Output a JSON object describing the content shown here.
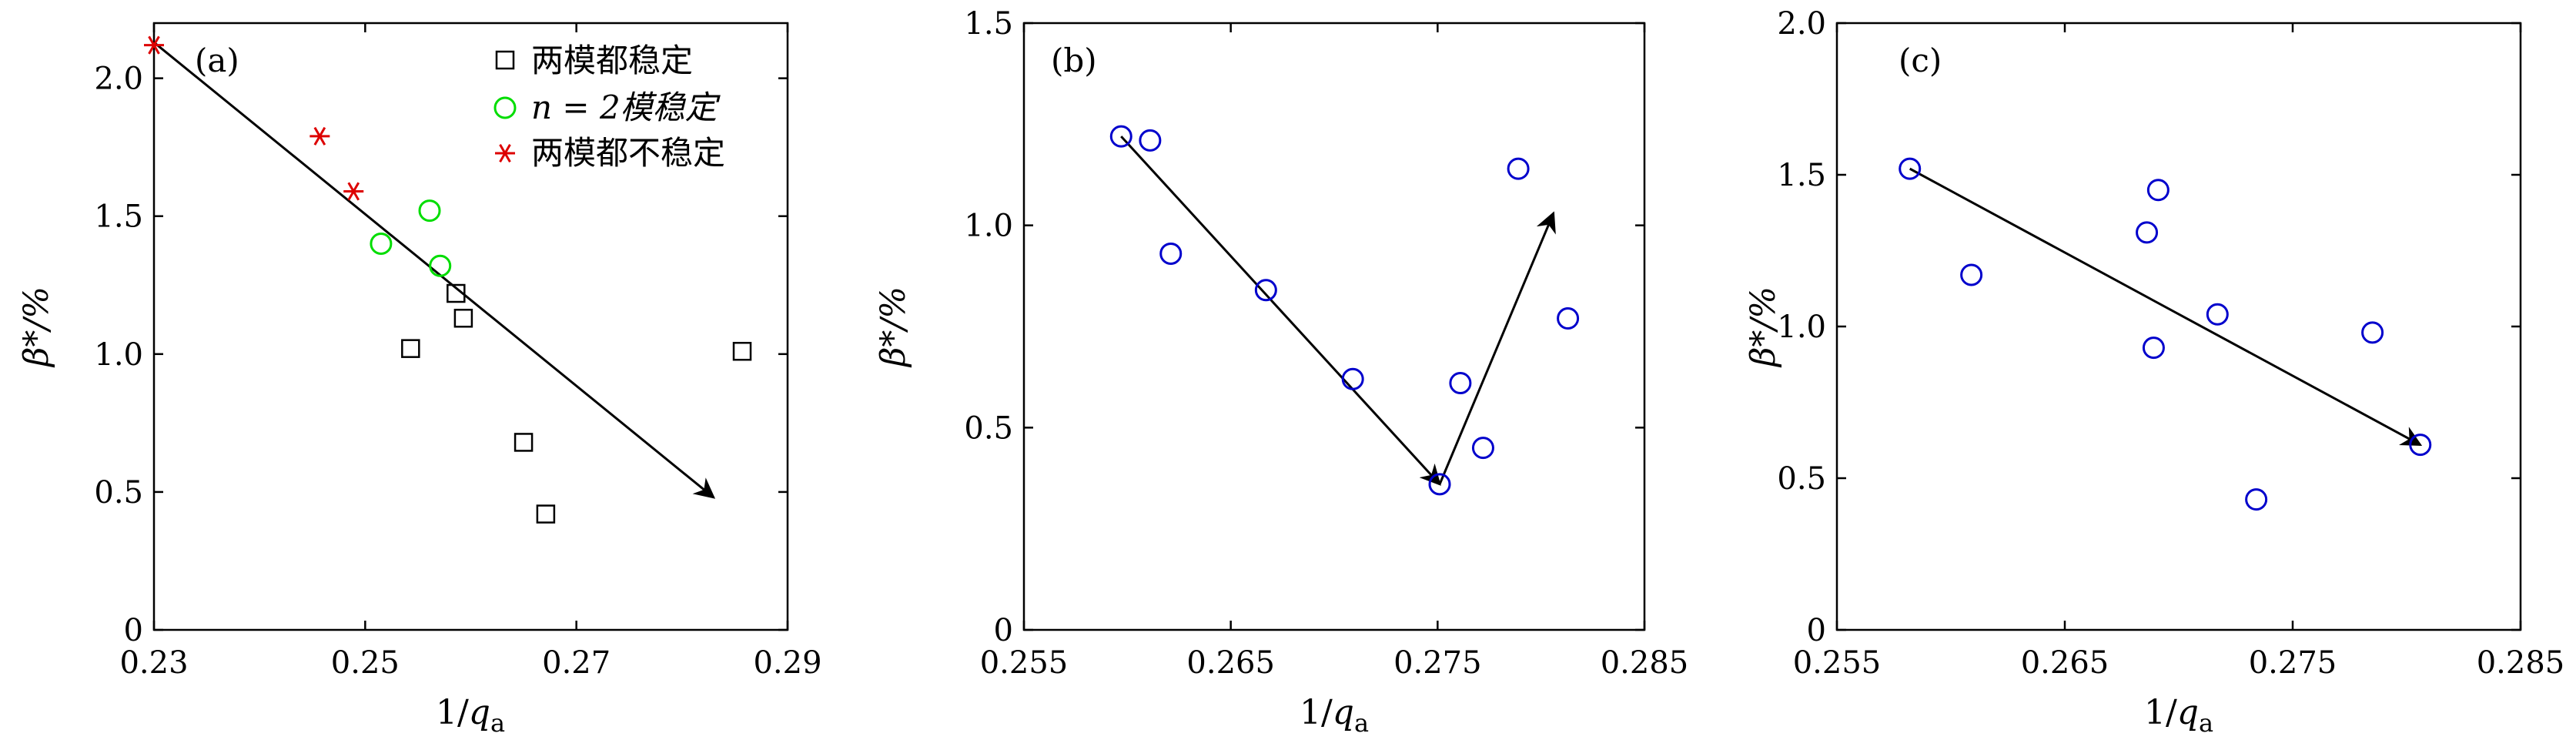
{
  "chart_data": [
    {
      "type": "scatter",
      "panel_label": "(a)",
      "xlabel": "1/q_a",
      "xlabel_main": "1/",
      "xlabel_var": "q",
      "xlabel_sub": "a",
      "ylabel": "β*/%",
      "xlim": [
        0.23,
        0.29
      ],
      "ylim": [
        0,
        2.2
      ],
      "xticks": [
        "0.23",
        "0.25",
        "0.27",
        "0.29"
      ],
      "yticks": [
        "0",
        "0.5",
        "1.0",
        "1.5",
        "2.0"
      ],
      "legend_position": "top-right",
      "series": [
        {
          "name": "两模都稳定",
          "marker": "square",
          "color": "#000000",
          "x": [
            0.2543,
            0.2586,
            0.2593,
            0.265,
            0.2671,
            0.2857
          ],
          "y": [
            1.02,
            1.22,
            1.13,
            0.68,
            0.42,
            1.01
          ]
        },
        {
          "name": "n = 2模稳定",
          "marker": "circle",
          "color": "#00dd00",
          "x": [
            0.2515,
            0.2561,
            0.2571
          ],
          "y": [
            1.4,
            1.52,
            1.32
          ]
        },
        {
          "name": "两模都不稳定",
          "marker": "asterisk",
          "color": "#dd0000",
          "x": [
            0.23,
            0.2457,
            0.2489
          ],
          "y": [
            2.12,
            1.79,
            1.59
          ]
        }
      ],
      "arrows": [
        {
          "from": [
            0.23,
            2.13
          ],
          "to": [
            0.283,
            0.48
          ]
        }
      ]
    },
    {
      "type": "scatter",
      "panel_label": "(b)",
      "xlabel": "1/q_a",
      "xlabel_main": "1/",
      "xlabel_var": "q",
      "xlabel_sub": "a",
      "ylabel": "β*/%",
      "xlim": [
        0.255,
        0.285
      ],
      "ylim": [
        0,
        1.5
      ],
      "xticks": [
        "0.255",
        "0.265",
        "0.275",
        "0.285"
      ],
      "yticks": [
        "0",
        "0.5",
        "1.0",
        "1.5"
      ],
      "series": [
        {
          "marker": "circle",
          "color": "#0000cc",
          "x": [
            0.2597,
            0.2611,
            0.2621,
            0.2667,
            0.2709,
            0.2751,
            0.2761,
            0.2772,
            0.2789,
            0.2813
          ],
          "y": [
            1.22,
            1.21,
            0.93,
            0.84,
            0.62,
            0.36,
            0.61,
            0.45,
            1.14,
            0.77
          ]
        }
      ],
      "arrows": [
        {
          "from": [
            0.2597,
            1.22
          ],
          "to": [
            0.2751,
            0.36
          ]
        },
        {
          "from": [
            0.2751,
            0.36
          ],
          "to": [
            0.2806,
            1.03
          ]
        }
      ]
    },
    {
      "type": "scatter",
      "panel_label": "(c)",
      "xlabel": "1/q_a",
      "xlabel_main": "1/",
      "xlabel_var": "q",
      "xlabel_sub": "a",
      "ylabel": "β*/%",
      "xlim": [
        0.255,
        0.285
      ],
      "ylim": [
        0,
        2.0
      ],
      "xticks": [
        "0.255",
        "0.265",
        "0.275",
        "0.285"
      ],
      "yticks": [
        "0",
        "0.5",
        "1.0",
        "1.5",
        "2.0"
      ],
      "series": [
        {
          "marker": "circle",
          "color": "#0000cc",
          "x": [
            0.2582,
            0.2609,
            0.2686,
            0.2689,
            0.2691,
            0.2717,
            0.2734,
            0.2785,
            0.2806
          ],
          "y": [
            1.52,
            1.17,
            1.31,
            0.93,
            1.45,
            1.04,
            0.43,
            0.98,
            0.61
          ]
        }
      ],
      "arrows": [
        {
          "from": [
            0.2582,
            1.52
          ],
          "to": [
            0.2806,
            0.61
          ]
        }
      ]
    }
  ]
}
